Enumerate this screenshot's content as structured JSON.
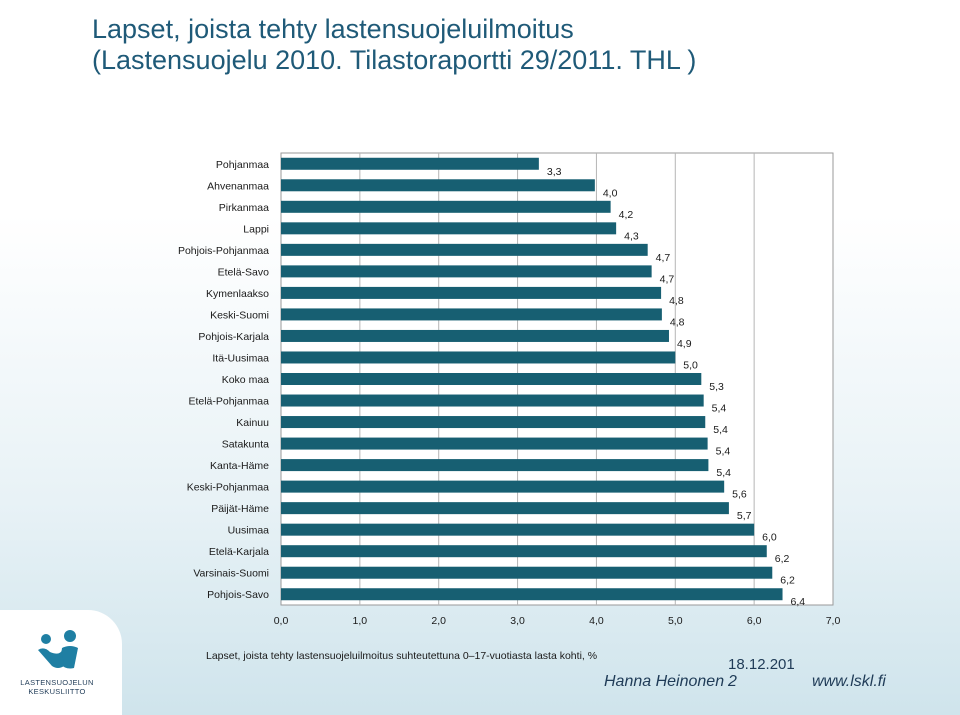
{
  "title": {
    "line1": "Lapset, joista tehty lastensuojeluilmoitus",
    "line2": "(Lastensuojelu 2010. Tilastoraportti 29/2011. THL )"
  },
  "chart_data": {
    "type": "bar",
    "orientation": "horizontal",
    "categories": [
      "Pohjanmaa",
      "Ahvenanmaa",
      "Pirkanmaa",
      "Lappi",
      "Pohjois-Pohjanmaa",
      "Etelä-Savo",
      "Kymenlaakso",
      "Keski-Suomi",
      "Pohjois-Karjala",
      "Itä-Uusimaa",
      "Koko maa",
      "Etelä-Pohjanmaa",
      "Kainuu",
      "Satakunta",
      "Kanta-Häme",
      "Keski-Pohjanmaa",
      "Päijät-Häme",
      "Uusimaa",
      "Etelä-Karjala",
      "Varsinais-Suomi",
      "Pohjois-Savo"
    ],
    "values": [
      3.27,
      3.98,
      4.18,
      4.25,
      4.65,
      4.7,
      4.82,
      4.83,
      4.92,
      5.0,
      5.33,
      5.36,
      5.38,
      5.41,
      5.42,
      5.62,
      5.68,
      6.0,
      6.16,
      6.23,
      6.36
    ],
    "value_labels": [
      "3,3",
      "4,0",
      "4,2",
      "4,3",
      "4,7",
      "4,7",
      "4,8",
      "4,8",
      "4,9",
      "5,0",
      "5,3",
      "5,4",
      "5,4",
      "5,4",
      "5,4",
      "5,6",
      "5,7",
      "6,0",
      "6,2",
      "6,2",
      "6,4"
    ],
    "xlim": [
      0,
      7
    ],
    "xticks": [
      "0,0",
      "1,0",
      "2,0",
      "3,0",
      "4,0",
      "5,0",
      "6,0",
      "7,0"
    ],
    "xlabel": "Lapset,  joista tehty lastensuojeluilmoitus suhteutettuna 0–17-vuotiasta lasta kohti, %",
    "ylabel": "",
    "grid": "vertical",
    "bar_color": "#175f72"
  },
  "footer": {
    "author": "Hanna Heinonen",
    "date": "18.12.201",
    "page": "2",
    "url": "www.lskl.fi"
  },
  "logo": {
    "line1": "LASTENSUOJELUN",
    "line2": "KESKUSLIITTO",
    "color": "#1f7fa3"
  }
}
